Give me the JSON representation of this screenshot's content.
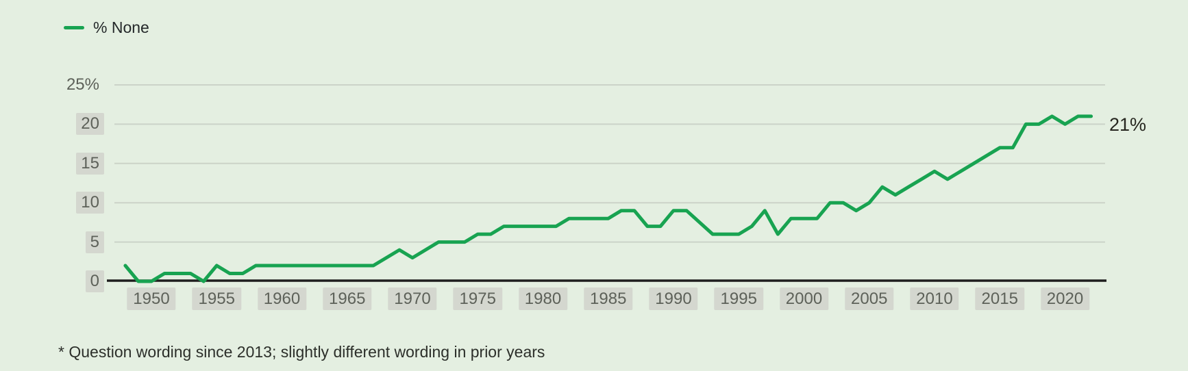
{
  "colors": {
    "background": "#e4efe1",
    "line": "#18a351",
    "grid": "#cbd3c8",
    "axis": "#1e1e1e",
    "tick_text": "#5d6159",
    "tick_box": "#d4d7cf",
    "legend_text": "#24282a",
    "end_label_text": "#26261f",
    "footnote_text": "#2c2f2a"
  },
  "legend": {
    "label": "% None",
    "position": "top-left"
  },
  "chart_data": {
    "type": "line",
    "title": "",
    "xlabel": "",
    "ylabel": "",
    "grid": true,
    "legend_position": "top-left",
    "ylim": [
      0,
      25
    ],
    "xlim": [
      1948,
      2022.5
    ],
    "end_label": "21%",
    "series": [
      {
        "name": "% None",
        "points": [
          [
            1948,
            2
          ],
          [
            1949,
            0
          ],
          [
            1950,
            0
          ],
          [
            1951,
            1
          ],
          [
            1953,
            1
          ],
          [
            1954,
            0
          ],
          [
            1955,
            2
          ],
          [
            1956,
            1
          ],
          [
            1957,
            1
          ],
          [
            1958,
            2
          ],
          [
            1967,
            2
          ],
          [
            1969,
            4
          ],
          [
            1970,
            3
          ],
          [
            1972,
            5
          ],
          [
            1974,
            5
          ],
          [
            1975,
            6
          ],
          [
            1976,
            6
          ],
          [
            1977,
            7
          ],
          [
            1981,
            7
          ],
          [
            1982,
            8
          ],
          [
            1985,
            8
          ],
          [
            1986,
            9
          ],
          [
            1987,
            9
          ],
          [
            1988,
            7
          ],
          [
            1989,
            7
          ],
          [
            1990,
            9
          ],
          [
            1991,
            9
          ],
          [
            1993,
            6
          ],
          [
            1995,
            6
          ],
          [
            1996,
            7
          ],
          [
            1997,
            9
          ],
          [
            1998,
            6
          ],
          [
            1999,
            8
          ],
          [
            2001,
            8
          ],
          [
            2002,
            10
          ],
          [
            2003,
            10
          ],
          [
            2004,
            9
          ],
          [
            2005,
            10
          ],
          [
            2006,
            12
          ],
          [
            2007,
            11
          ],
          [
            2008,
            12
          ],
          [
            2009,
            13
          ],
          [
            2010,
            14
          ],
          [
            2011,
            13
          ],
          [
            2012,
            14
          ],
          [
            2013,
            15
          ],
          [
            2014,
            16
          ],
          [
            2015,
            17
          ],
          [
            2016,
            17
          ],
          [
            2017,
            20
          ],
          [
            2018,
            20
          ],
          [
            2019,
            21
          ],
          [
            2020,
            20
          ],
          [
            2021,
            21
          ],
          [
            2022,
            21
          ]
        ]
      }
    ],
    "y_ticks": [
      {
        "label": "25%",
        "value": 25,
        "boxed": false
      },
      {
        "label": "20",
        "value": 20,
        "boxed": true
      },
      {
        "label": "15",
        "value": 15,
        "boxed": true
      },
      {
        "label": "10",
        "value": 10,
        "boxed": true
      },
      {
        "label": "5",
        "value": 5,
        "boxed": true
      },
      {
        "label": "0",
        "value": 0,
        "boxed": true
      }
    ],
    "x_ticks": [
      {
        "label": "1950",
        "value": 1950
      },
      {
        "label": "1955",
        "value": 1955
      },
      {
        "label": "1960",
        "value": 1960
      },
      {
        "label": "1965",
        "value": 1965
      },
      {
        "label": "1970",
        "value": 1970
      },
      {
        "label": "1975",
        "value": 1975
      },
      {
        "label": "1980",
        "value": 1980
      },
      {
        "label": "1985",
        "value": 1985
      },
      {
        "label": "1990",
        "value": 1990
      },
      {
        "label": "1995",
        "value": 1995
      },
      {
        "label": "2000",
        "value": 2000
      },
      {
        "label": "2005",
        "value": 2005
      },
      {
        "label": "2010",
        "value": 2010
      },
      {
        "label": "2015",
        "value": 2015
      },
      {
        "label": "2020",
        "value": 2020
      }
    ]
  },
  "annotations": {
    "end_label": "21%"
  },
  "footnote": {
    "text": "* Question wording since 2013; slightly different wording in prior years"
  }
}
